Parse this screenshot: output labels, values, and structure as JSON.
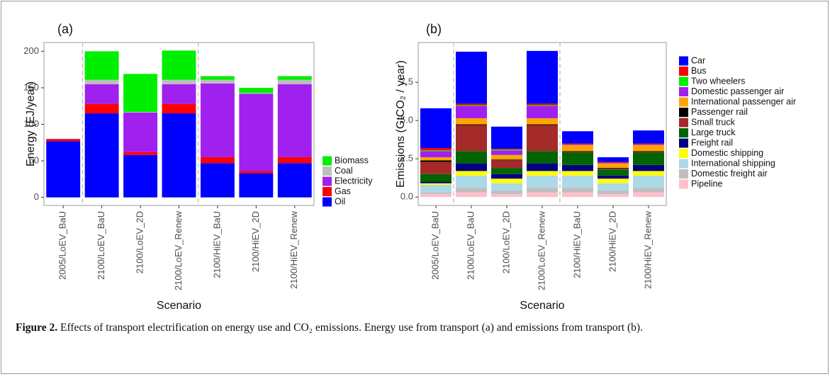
{
  "chart_data": [
    {
      "type": "stacked-bar",
      "panel_label": "(a)",
      "x_label": "Scenario",
      "y_label": "Energy (EJ/year)",
      "categories": [
        "2005/LoEV_BaU",
        "2100/LoEV_BaU",
        "2100/LoEV_2D",
        "2100/LoEV_Renew",
        "2100/HiEV_BaU",
        "2100/HiEV_2D",
        "2100/HiEV_Renew"
      ],
      "series": [
        {
          "name": "Oil",
          "color": "#0000ff",
          "values": [
            77,
            115,
            58,
            115,
            47,
            33,
            47
          ]
        },
        {
          "name": "Gas",
          "color": "#ff0000",
          "values": [
            3,
            13,
            4,
            13,
            8,
            3,
            8
          ]
        },
        {
          "name": "Electricity",
          "color": "#a020f0",
          "values": [
            0,
            27,
            54,
            27,
            101,
            106,
            100
          ]
        },
        {
          "name": "Coal",
          "color": "#bebebe",
          "values": [
            0,
            6,
            1,
            6,
            5,
            1,
            6
          ]
        },
        {
          "name": "Biomass",
          "color": "#00ee00",
          "values": [
            0,
            39,
            52,
            40,
            5,
            7,
            5
          ]
        }
      ],
      "ylim": [
        -11,
        212
      ],
      "yticks": [
        0,
        50,
        100,
        150,
        200
      ]
    },
    {
      "type": "stacked-bar",
      "panel_label": "(b)",
      "x_label": "Scenario",
      "y_label": "Emissions (GtCO₂ / year)",
      "categories": [
        "2005/LoEV_BaU",
        "2100/LoEV_BaU",
        "2100/LoEV_2D",
        "2100/LoEV_Renew",
        "2100/HiEV_BaU",
        "2100/HiEV_2D",
        "2100/HiEV_Renew"
      ],
      "series": [
        {
          "name": "Pipeline",
          "color": "#ffc0cb",
          "values": [
            0.2,
            0.3,
            0.2,
            0.3,
            0.3,
            0.2,
            0.3
          ]
        },
        {
          "name": "Domestic freight air",
          "color": "#bebebe",
          "values": [
            0.1,
            0.3,
            0.2,
            0.3,
            0.3,
            0.2,
            0.3
          ]
        },
        {
          "name": "International shipping",
          "color": "#add8e6",
          "values": [
            0.5,
            0.8,
            0.5,
            0.8,
            0.8,
            0.5,
            0.8
          ]
        },
        {
          "name": "Domestic shipping",
          "color": "#ffff00",
          "values": [
            0.1,
            0.3,
            0.3,
            0.3,
            0.3,
            0.3,
            0.3
          ]
        },
        {
          "name": "Freight rail",
          "color": "#000080",
          "values": [
            0.1,
            0.5,
            0.3,
            0.5,
            0.4,
            0.2,
            0.4
          ]
        },
        {
          "name": "Large truck",
          "color": "#006400",
          "values": [
            0.5,
            0.8,
            0.4,
            0.8,
            0.8,
            0.4,
            0.8
          ]
        },
        {
          "name": "Small truck",
          "color": "#a52a2a",
          "values": [
            0.8,
            1.7,
            0.5,
            1.7,
            0.05,
            0.05,
            0.05
          ]
        },
        {
          "name": "Passenger rail",
          "color": "#000000",
          "values": [
            0.1,
            0.05,
            0.05,
            0.05,
            0.05,
            0.05,
            0.05
          ]
        },
        {
          "name": "International passenger air",
          "color": "#ffa500",
          "values": [
            0.2,
            0.4,
            0.3,
            0.4,
            0.4,
            0.3,
            0.4
          ]
        },
        {
          "name": "Domestic passenger air",
          "color": "#a020f0",
          "values": [
            0.4,
            0.8,
            0.3,
            0.8,
            0.05,
            0.05,
            0.05
          ]
        },
        {
          "name": "Two wheelers",
          "color": "#00ee00",
          "values": [
            0.05,
            0.05,
            0.05,
            0.05,
            0,
            0,
            0
          ]
        },
        {
          "name": "Bus",
          "color": "#ff0000",
          "values": [
            0.15,
            0.1,
            0.05,
            0.1,
            0.05,
            0.05,
            0.05
          ]
        },
        {
          "name": "Car",
          "color": "#0000ff",
          "values": [
            2.6,
            3.4,
            1.45,
            3.45,
            0.8,
            0.3,
            0.85
          ]
        }
      ],
      "ylim": [
        -0.55,
        10.1
      ],
      "yticks": [
        {
          "value": 0,
          "label": "0.0"
        },
        2.5,
        {
          "value": 5,
          "label": "5.0"
        },
        7.5
      ]
    }
  ],
  "caption": {
    "label": "Figure 2.",
    "text": "Effects of transport electrification on energy use and CO₂ emissions. Energy use from transport (a) and emissions from transport (b)."
  }
}
